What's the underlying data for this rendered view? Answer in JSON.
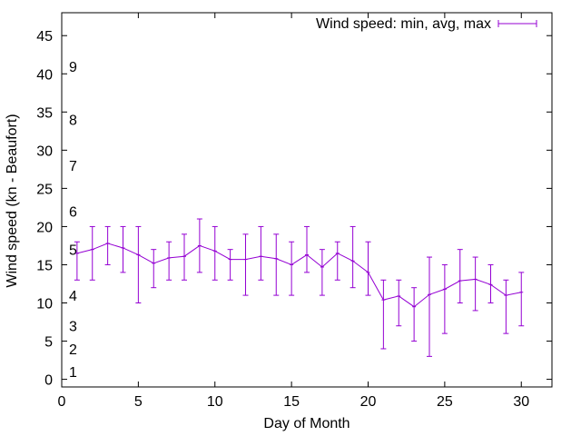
{
  "chart_data": {
    "type": "line",
    "xlabel": "Day of Month",
    "ylabel": "Wind speed (kn - Beaufort)",
    "xlim": [
      0,
      32
    ],
    "ylim": [
      -1,
      48
    ],
    "xticks": [
      0,
      5,
      10,
      15,
      20,
      25,
      30
    ],
    "yticks": [
      0,
      5,
      10,
      15,
      20,
      25,
      30,
      35,
      40,
      45
    ],
    "grid": false,
    "legend": "top-right",
    "series": [
      {
        "name": "Wind speed: min, avg, max",
        "color": "#9400d3",
        "x": [
          1,
          2,
          3,
          4,
          5,
          6,
          7,
          8,
          9,
          10,
          11,
          12,
          13,
          14,
          15,
          16,
          17,
          18,
          19,
          20,
          21,
          22,
          23,
          24,
          25,
          26,
          27,
          28,
          29,
          30
        ],
        "avg": [
          16.5,
          17.0,
          17.8,
          17.2,
          16.3,
          15.2,
          15.9,
          16.1,
          17.5,
          16.8,
          15.7,
          15.7,
          16.1,
          15.8,
          15.0,
          16.3,
          14.7,
          16.5,
          15.5,
          14.0,
          10.4,
          10.9,
          9.5,
          11.1,
          11.8,
          12.9,
          13.1,
          12.4,
          11.0,
          11.4
        ],
        "min": [
          13,
          13,
          15,
          14,
          10,
          12,
          13,
          13,
          14,
          13,
          13,
          11,
          13,
          11,
          11,
          14,
          11,
          13,
          12,
          11,
          4,
          7,
          5,
          3,
          6,
          10,
          9,
          10,
          6,
          7
        ],
        "max": [
          18,
          20,
          20,
          20,
          20,
          17,
          18,
          19,
          21,
          20,
          17,
          19,
          20,
          19,
          18,
          20,
          17,
          18,
          20,
          18,
          13,
          13,
          12,
          16,
          15,
          17,
          16,
          15,
          13,
          14
        ]
      }
    ],
    "beaufort_labels": [
      {
        "text": "1",
        "y": 1
      },
      {
        "text": "2",
        "y": 4
      },
      {
        "text": "3",
        "y": 7
      },
      {
        "text": "4",
        "y": 11
      },
      {
        "text": "5",
        "y": 17
      },
      {
        "text": "6",
        "y": 22
      },
      {
        "text": "7",
        "y": 28
      },
      {
        "text": "8",
        "y": 34
      },
      {
        "text": "9",
        "y": 41
      }
    ]
  }
}
